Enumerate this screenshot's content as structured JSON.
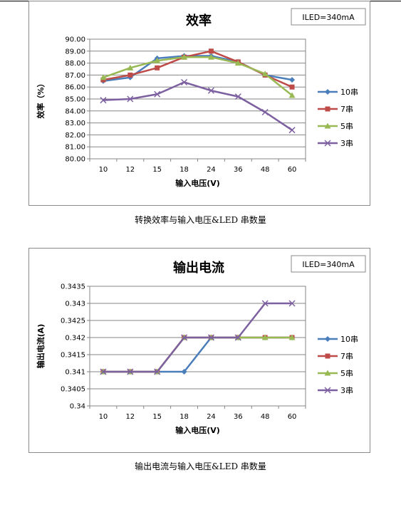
{
  "captions": {
    "figure1": "转换效率与输入电压&LED 串数量",
    "figure2": "输出电流与输入电压&LED 串数量"
  },
  "chart_data": [
    {
      "type": "line",
      "title": "效率",
      "annotation": "ILED=340mA",
      "xlabel": "输入电压(V)",
      "ylabel": "效率（%）",
      "categories": [
        "10",
        "12",
        "15",
        "18",
        "24",
        "36",
        "48",
        "60"
      ],
      "ylim": [
        80,
        90
      ],
      "yticks": [
        "80.00",
        "81.00",
        "82.00",
        "83.00",
        "84.00",
        "85.00",
        "86.00",
        "87.00",
        "88.00",
        "89.00",
        "90.00"
      ],
      "grid": true,
      "legend": "right",
      "series": [
        {
          "name": "10串",
          "color": "#4a7ebb",
          "marker": "diamond",
          "values": [
            86.5,
            86.8,
            88.4,
            88.6,
            88.6,
            88.1,
            87.0,
            86.6
          ]
        },
        {
          "name": "7串",
          "color": "#be4b48",
          "marker": "square",
          "values": [
            86.6,
            87.0,
            87.6,
            88.5,
            89.0,
            88.1,
            87.0,
            86.0
          ]
        },
        {
          "name": "5串",
          "color": "#98b954",
          "marker": "triangle",
          "values": [
            86.8,
            87.6,
            88.2,
            88.5,
            88.5,
            88.0,
            87.1,
            85.3
          ]
        },
        {
          "name": "3串",
          "color": "#7d60a0",
          "marker": "x",
          "values": [
            84.9,
            85.0,
            85.4,
            86.4,
            85.7,
            85.2,
            83.9,
            82.4
          ]
        }
      ]
    },
    {
      "type": "line",
      "title": "输出电流",
      "annotation": "ILED=340mA",
      "xlabel": "输入电压(V)",
      "ylabel": "输出电流(A)",
      "categories": [
        "10",
        "12",
        "15",
        "18",
        "24",
        "36",
        "48",
        "60"
      ],
      "ylim": [
        0.34,
        0.3435
      ],
      "yticks": [
        "0.34",
        "0.3405",
        "0.341",
        "0.3415",
        "0.342",
        "0.3425",
        "0.343",
        "0.3435"
      ],
      "grid": true,
      "legend": "right",
      "series": [
        {
          "name": "10串",
          "color": "#4a7ebb",
          "marker": "diamond",
          "values": [
            0.341,
            0.341,
            0.341,
            0.341,
            0.342,
            0.342,
            0.342,
            0.342
          ]
        },
        {
          "name": "7串",
          "color": "#be4b48",
          "marker": "square",
          "values": [
            0.341,
            0.341,
            0.341,
            0.342,
            0.342,
            0.342,
            0.342,
            0.342
          ]
        },
        {
          "name": "5串",
          "color": "#98b954",
          "marker": "triangle",
          "values": [
            0.341,
            0.341,
            0.341,
            0.342,
            0.342,
            0.342,
            0.342,
            0.342
          ]
        },
        {
          "name": "3串",
          "color": "#7d60a0",
          "marker": "x",
          "values": [
            0.341,
            0.341,
            0.341,
            0.342,
            0.342,
            0.342,
            0.343,
            0.343
          ]
        }
      ]
    }
  ]
}
